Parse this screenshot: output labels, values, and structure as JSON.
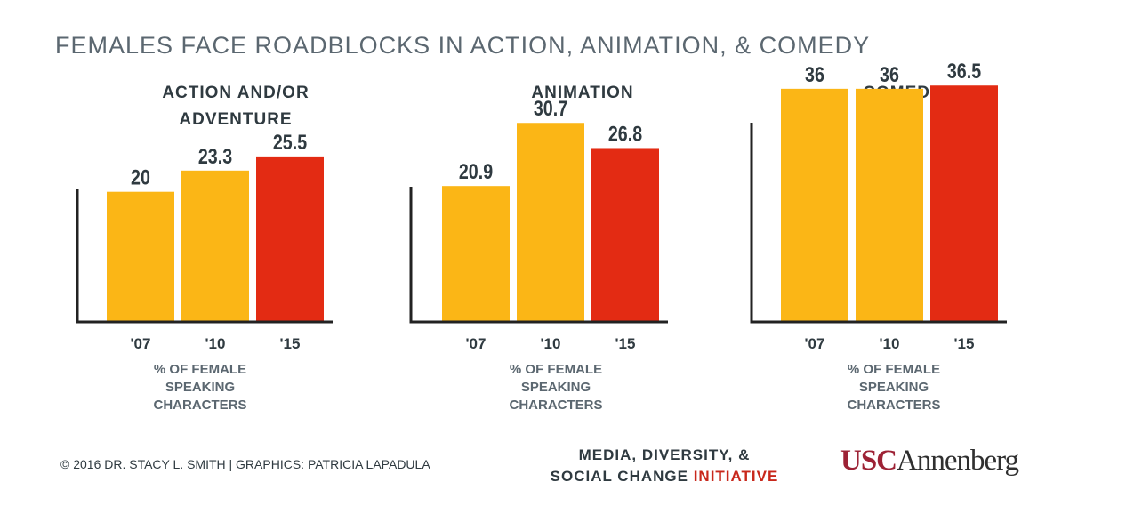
{
  "title": "FEMALES FACE ROADBLOCKS IN ACTION, ANIMATION, & COMEDY",
  "chart_data": [
    {
      "type": "bar",
      "title": "ACTION AND/OR ADVENTURE",
      "categories": [
        "'07",
        "'10",
        "'15"
      ],
      "values": [
        20,
        23.3,
        25.5
      ],
      "xlabel": "% OF FEMALE SPEAKING CHARACTERS",
      "ylabel": "",
      "ylim": [
        0,
        40
      ],
      "grid": false,
      "colors": [
        "#fbb616",
        "#fbb616",
        "#e32b13"
      ]
    },
    {
      "type": "bar",
      "title": "ANIMATION",
      "categories": [
        "'07",
        "'10",
        "'15"
      ],
      "values": [
        20.9,
        30.7,
        26.8
      ],
      "xlabel": "% OF FEMALE SPEAKING CHARACTERS",
      "ylabel": "",
      "ylim": [
        0,
        40
      ],
      "grid": false,
      "colors": [
        "#fbb616",
        "#fbb616",
        "#e32b13"
      ]
    },
    {
      "type": "bar",
      "title": "COMEDY",
      "categories": [
        "'07",
        "'10",
        "'15"
      ],
      "values": [
        36,
        36,
        36.5
      ],
      "xlabel": "% OF FEMALE SPEAKING CHARACTERS",
      "ylabel": "",
      "ylim": [
        0,
        40
      ],
      "grid": false,
      "colors": [
        "#fbb616",
        "#fbb616",
        "#e32b13"
      ]
    }
  ],
  "footer": {
    "credit": "© 2016 DR. STACY L. SMITH | GRAPHICS: PATRICIA LAPADULA",
    "org_line1": "MEDIA, DIVERSITY, &",
    "org_line2_plain": "SOCIAL CHANGE ",
    "org_line2_accent": "INITIATIVE",
    "logo_usc": "USC",
    "logo_annenberg": "Annenberg"
  }
}
